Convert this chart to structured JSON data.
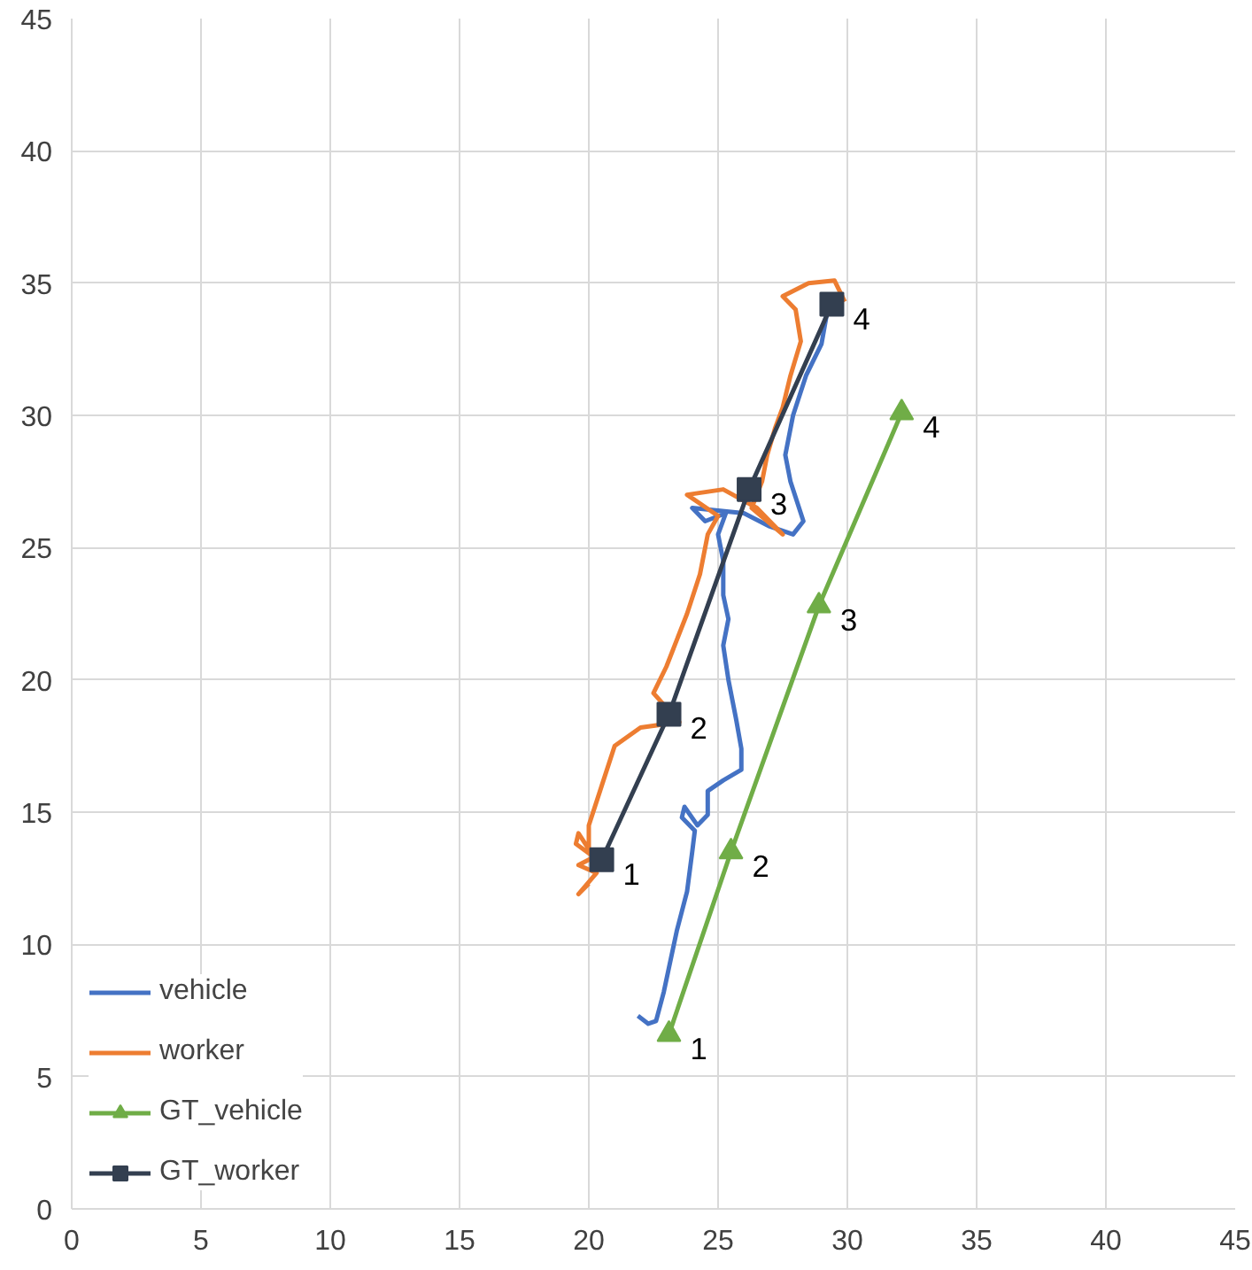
{
  "chart_data": {
    "type": "line",
    "xlim": [
      0,
      45
    ],
    "ylim": [
      0,
      45
    ],
    "xticks": [
      0,
      5,
      10,
      15,
      20,
      25,
      30,
      35,
      40,
      45
    ],
    "yticks": [
      0,
      5,
      10,
      15,
      20,
      25,
      30,
      35,
      40,
      45
    ],
    "grid": true,
    "legend": "bottom left",
    "series": [
      {
        "name": "vehicle",
        "color": "#4472c4",
        "marker": "none",
        "x": [
          21.9,
          22.3,
          22.6,
          22.9,
          23.4,
          23.8,
          24.0,
          24.1,
          23.6,
          23.7,
          24.2,
          24.6,
          24.6,
          25.2,
          25.9,
          25.9,
          25.7,
          25.4,
          25.2,
          25.4,
          25.2,
          25.2,
          25.0,
          25.3,
          24.5,
          24.0,
          26.0,
          27.0,
          27.9,
          28.3,
          27.8,
          27.6,
          27.9,
          28.4,
          29.0,
          29.2,
          29.0
        ],
        "values": [
          7.3,
          7.0,
          7.1,
          8.2,
          10.5,
          12.0,
          13.5,
          14.3,
          14.8,
          15.2,
          14.5,
          14.9,
          15.8,
          16.2,
          16.6,
          17.4,
          18.5,
          20.0,
          21.3,
          22.3,
          23.2,
          24.5,
          25.5,
          26.3,
          26.0,
          26.5,
          26.3,
          25.8,
          25.5,
          26.0,
          27.5,
          28.5,
          30.0,
          31.5,
          32.7,
          33.8,
          33.2
        ]
      },
      {
        "name": "worker",
        "color": "#ed7d31",
        "marker": "none",
        "x": [
          20.0,
          19.6,
          20.3,
          19.6,
          20.2,
          19.5,
          19.6,
          20.0,
          20.0,
          20.5,
          21.0,
          22.0,
          23.5,
          22.5,
          23.0,
          23.8,
          24.3,
          24.6,
          25.0,
          23.8,
          25.2,
          26.5,
          27.5,
          26.3,
          26.7,
          26.9,
          27.2,
          27.5,
          27.8,
          28.2,
          28.0,
          27.5,
          28.5,
          29.5,
          29.9
        ],
        "values": [
          12.3,
          11.9,
          12.7,
          13.0,
          13.3,
          13.8,
          14.2,
          13.6,
          14.5,
          16.0,
          17.5,
          18.2,
          18.4,
          19.5,
          20.5,
          22.5,
          24.0,
          25.5,
          26.2,
          27.0,
          27.2,
          26.5,
          25.5,
          26.5,
          27.5,
          28.5,
          29.5,
          30.3,
          31.5,
          32.8,
          34.0,
          34.5,
          35.0,
          35.1,
          34.3
        ]
      },
      {
        "name": "GT_vehicle",
        "color": "#70ad47",
        "marker": "triangle",
        "x": [
          23.1,
          25.5,
          28.9,
          32.1
        ],
        "values": [
          6.6,
          13.5,
          22.8,
          30.1
        ]
      },
      {
        "name": "GT_worker",
        "color": "#333f50",
        "marker": "square",
        "x": [
          20.5,
          23.1,
          26.2,
          29.4
        ],
        "values": [
          13.2,
          18.7,
          27.2,
          34.2
        ]
      }
    ],
    "annotations": [
      {
        "text": "1",
        "x": 20.5,
        "y": 13.2
      },
      {
        "text": "2",
        "x": 23.1,
        "y": 18.7
      },
      {
        "text": "3",
        "x": 26.2,
        "y": 27.2
      },
      {
        "text": "4",
        "x": 29.4,
        "y": 34.2
      },
      {
        "text": "1",
        "x": 23.1,
        "y": 6.6
      },
      {
        "text": "2",
        "x": 25.5,
        "y": 13.5
      },
      {
        "text": "3",
        "x": 28.9,
        "y": 22.8
      },
      {
        "text": "4",
        "x": 32.1,
        "y": 30.1
      }
    ]
  }
}
